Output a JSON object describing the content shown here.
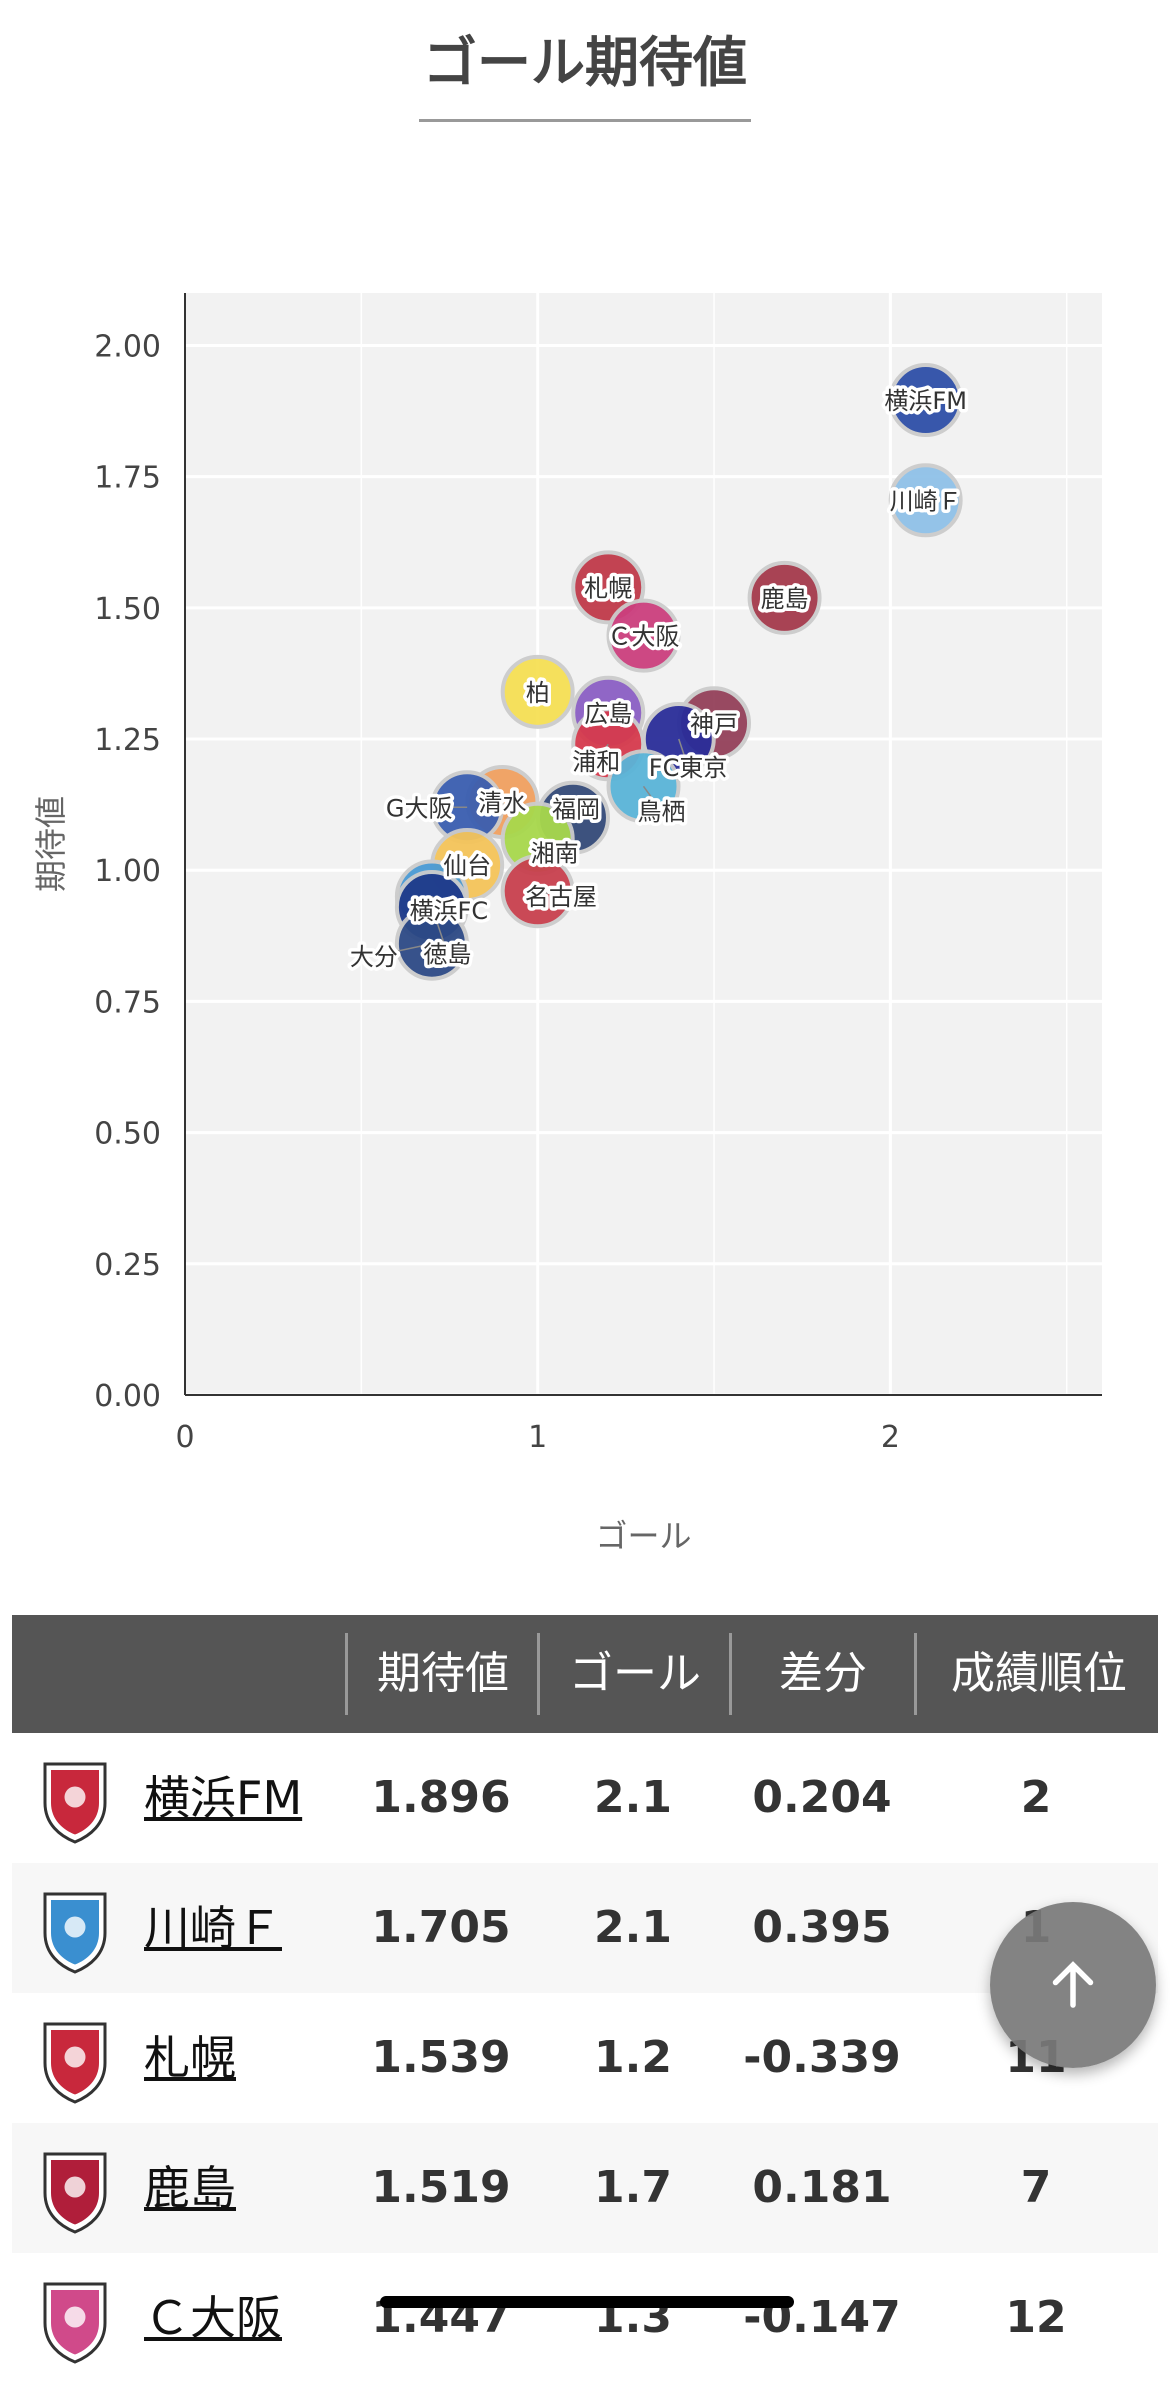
{
  "page_title": "ゴール期待値",
  "chart_data": {
    "type": "scatter",
    "title": "",
    "xlabel": "ゴール",
    "ylabel": "期待値",
    "xlim": [
      0,
      2.6
    ],
    "ylim": [
      0,
      2.1
    ],
    "xticks": [
      "0",
      "1",
      "2"
    ],
    "xtick_values": [
      0,
      1,
      2
    ],
    "yticks": [
      "0.00",
      "0.25",
      "0.50",
      "0.75",
      "1.00",
      "1.25",
      "1.50",
      "1.75",
      "2.00"
    ],
    "ytick_values": [
      0,
      0.25,
      0.5,
      0.75,
      1.0,
      1.25,
      1.5,
      1.75,
      2.0
    ],
    "grid": true,
    "points": [
      {
        "label": "横浜FM",
        "x": 2.1,
        "y": 1.896,
        "color": "#2f4fa8"
      },
      {
        "label": "川崎Ｆ",
        "x": 2.1,
        "y": 1.705,
        "color": "#8fc1e8"
      },
      {
        "label": "札幌",
        "x": 1.2,
        "y": 1.539,
        "color": "#c03a4a"
      },
      {
        "label": "鹿島",
        "x": 1.7,
        "y": 1.519,
        "color": "#a53a4c"
      },
      {
        "label": "Ｃ大阪",
        "x": 1.3,
        "y": 1.447,
        "color": "#cc3f7e"
      },
      {
        "label": "柏",
        "x": 1.0,
        "y": 1.34,
        "color": "#f6e055"
      },
      {
        "label": "広島",
        "x": 1.2,
        "y": 1.3,
        "color": "#8b5fc4"
      },
      {
        "label": "神戸",
        "x": 1.5,
        "y": 1.28,
        "color": "#94415a"
      },
      {
        "label": "FC東京",
        "x": 1.4,
        "y": 1.25,
        "color": "#2a2d99"
      },
      {
        "label": "浦和",
        "x": 1.2,
        "y": 1.24,
        "color": "#d63a4d"
      },
      {
        "label": "鳥栖",
        "x": 1.3,
        "y": 1.16,
        "color": "#5ab4d8"
      },
      {
        "label": "清水",
        "x": 0.9,
        "y": 1.13,
        "color": "#f0a060"
      },
      {
        "label": "G大阪",
        "x": 0.8,
        "y": 1.12,
        "color": "#3a5eb0"
      },
      {
        "label": "福岡",
        "x": 1.1,
        "y": 1.1,
        "color": "#344a78"
      },
      {
        "label": "湘南",
        "x": 1.0,
        "y": 1.06,
        "color": "#a8d84c"
      },
      {
        "label": "仙台",
        "x": 0.8,
        "y": 1.01,
        "color": "#f5c45a"
      },
      {
        "label": "名古屋",
        "x": 1.0,
        "y": 0.96,
        "color": "#c8404e"
      },
      {
        "label": "横浜FC",
        "x": 0.7,
        "y": 0.95,
        "color": "#4a9ad4"
      },
      {
        "label": "徳島",
        "x": 0.7,
        "y": 0.93,
        "color": "#1f3a8a"
      },
      {
        "label": "大分",
        "x": 0.7,
        "y": 0.86,
        "color": "#2d4a86"
      }
    ]
  },
  "table": {
    "headers": [
      "期待値",
      "ゴール",
      "差分",
      "成績順位"
    ],
    "rows": [
      {
        "team": "横浜FM",
        "xg": "1.896",
        "goal": "2.1",
        "diff": "0.204",
        "rank": "2",
        "logo_color": "#c8283c"
      },
      {
        "team": "川崎Ｆ",
        "xg": "1.705",
        "goal": "2.1",
        "diff": "0.395",
        "rank": "1",
        "logo_color": "#3a8fd0"
      },
      {
        "team": "札幌",
        "xg": "1.539",
        "goal": "1.2",
        "diff": "-0.339",
        "rank": "11",
        "logo_color": "#c8283c"
      },
      {
        "team": "鹿島",
        "xg": "1.519",
        "goal": "1.7",
        "diff": "0.181",
        "rank": "7",
        "logo_color": "#b01e3a"
      },
      {
        "team": "Ｃ大阪",
        "xg": "1.447",
        "goal": "1.3",
        "diff": "-0.147",
        "rank": "12",
        "logo_color": "#d04a8a"
      }
    ]
  }
}
